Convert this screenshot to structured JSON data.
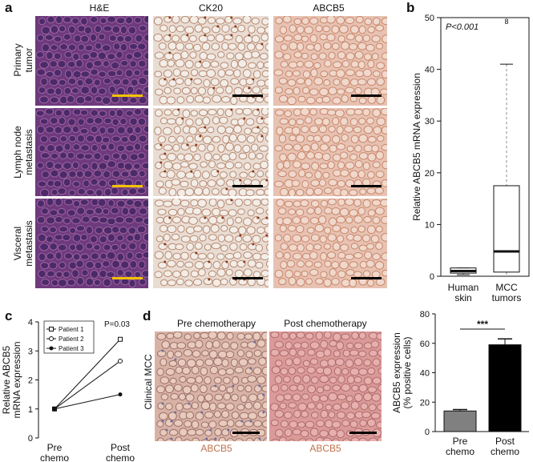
{
  "panel_a": {
    "letter": "a",
    "columns": [
      "H&E",
      "CK20",
      "ABCB5"
    ],
    "rows": [
      "Primary\ntumor",
      "Lymph node\nmetastasis",
      "Visceral\nmetastasis"
    ],
    "colors": {
      "he": "#6e3a7e",
      "ck20": "#e9dcd3",
      "abcb5": "#e7c2b2",
      "scale_he": "#f2c200",
      "scale_other": "#000000"
    }
  },
  "panel_b": {
    "letter": "b",
    "chart_data": {
      "type": "box",
      "ylabel": "Relative ABCB5 mRNA expression",
      "annotation": "P<0.001",
      "ylim": [
        0,
        50
      ],
      "yticks": [
        0,
        10,
        20,
        30,
        40,
        50
      ],
      "categories": [
        "Human\nskin",
        "MCC\ntumors"
      ],
      "boxes": [
        {
          "min": 0.3,
          "q1": 0.6,
          "median": 1.0,
          "q3": 1.6,
          "max": 1.6
        },
        {
          "min": 0.0,
          "q1": 0.8,
          "median": 4.8,
          "q3": 17.5,
          "max": 41.0,
          "outliers": [
            50.0
          ],
          "outlier_label": "8"
        }
      ]
    }
  },
  "panel_c": {
    "letter": "c",
    "chart_data": {
      "type": "line",
      "ylabel": "Relative ABCB5\nmRNA expression",
      "annotation": "P=0.03",
      "categories": [
        "Pre\nchemo",
        "Post\nchemo"
      ],
      "ylim": [
        0,
        4
      ],
      "yticks": [
        0,
        1,
        2,
        3,
        4
      ],
      "series": [
        {
          "name": "Patient 1",
          "values": [
            1.0,
            3.4
          ],
          "marker": "open-square"
        },
        {
          "name": "Patient 2",
          "values": [
            1.0,
            2.65
          ],
          "marker": "open-circle"
        },
        {
          "name": "Patient 3",
          "values": [
            1.0,
            1.5
          ],
          "marker": "filled-circle"
        }
      ]
    }
  },
  "panel_d": {
    "letter": "d",
    "images": [
      "Pre chemotherapy",
      "Post chemotherapy"
    ],
    "row_label": "Clinical MCC",
    "stain_label": "ABCB5",
    "stain_color": "#c0714a",
    "chart_data": {
      "type": "bar",
      "ylabel": "ABCB5 expression\n(% positive cells)",
      "categories": [
        "Pre\nchemo",
        "Post\nchemo"
      ],
      "values": [
        14,
        59
      ],
      "errors": [
        1,
        4
      ],
      "colors": [
        "#808080",
        "#000000"
      ],
      "ylim": [
        0,
        80
      ],
      "yticks": [
        0,
        20,
        40,
        60,
        80
      ],
      "significance": "***"
    }
  }
}
